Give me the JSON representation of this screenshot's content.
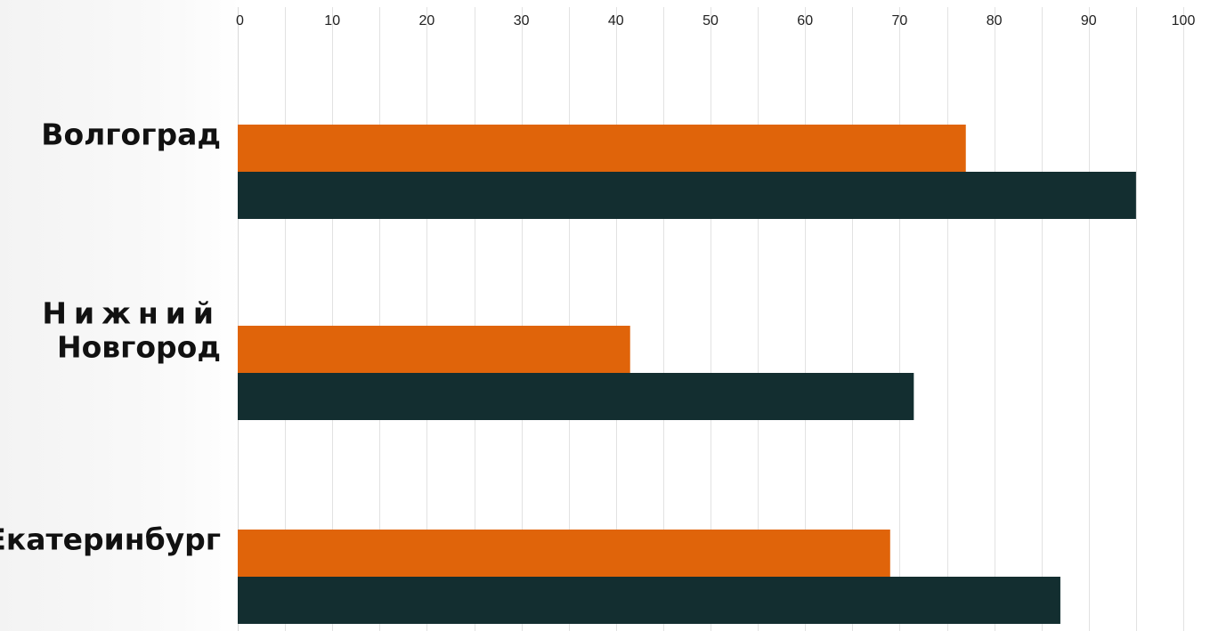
{
  "chart_data": {
    "type": "bar",
    "orientation": "horizontal",
    "categories": [
      "Волгоград",
      "Нижний Новгород",
      "Екатеринбург"
    ],
    "category_lines": [
      [
        "Волгоград"
      ],
      [
        "Нижний",
        "Новгород"
      ],
      [
        "Екатеринбург"
      ]
    ],
    "series": [
      {
        "color": "#e0640a",
        "values": [
          77,
          41.5,
          69
        ]
      },
      {
        "color": "#132e30",
        "values": [
          95,
          71.5,
          87
        ]
      }
    ],
    "xlim": [
      0,
      100
    ],
    "xticks": [
      "0",
      "10",
      "20",
      "30",
      "40",
      "50",
      "60",
      "70",
      "80",
      "90",
      "100"
    ],
    "xaxis_position": "top",
    "grid": true,
    "legend": "none"
  }
}
